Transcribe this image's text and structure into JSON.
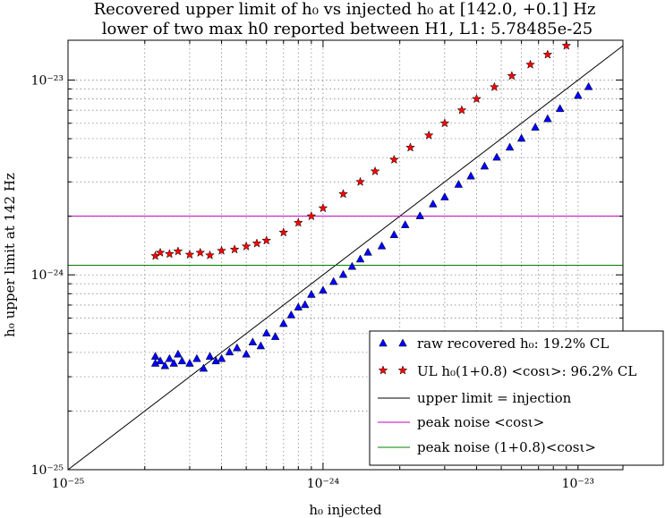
{
  "chart_data": {
    "type": "scatter",
    "title_line1": "Recovered upper limit of h₀ vs injected h₀ at [142.0, +0.1]  Hz",
    "title_line2": "lower of two max h0 reported between H1, L1: 5.78485e-25",
    "xlabel": "h₀ injected",
    "ylabel": "h₀ upper limit at 142 Hz",
    "x_scale": "log",
    "y_scale": "log",
    "xlim": [
      1e-25,
      1.5e-23
    ],
    "ylim": [
      1e-25,
      1.6e-23
    ],
    "x_ticks": [
      {
        "value": 1e-25,
        "label": "10⁻²⁵"
      },
      {
        "value": 1e-24,
        "label": "10⁻²⁴"
      },
      {
        "value": 1e-23,
        "label": "10⁻²³"
      }
    ],
    "y_ticks": [
      {
        "value": 1e-25,
        "label": "10⁻²⁵"
      },
      {
        "value": 1e-24,
        "label": "10⁻²⁴"
      },
      {
        "value": 1e-23,
        "label": "10⁻²³"
      }
    ],
    "grid": true,
    "legend_position": "lower-right",
    "series": [
      {
        "name": "raw recovered h₀: 19.2% CL",
        "marker": "triangle",
        "color": "#0000ff",
        "trend": "points lie around 0.83× injected for injected > 4e-25; plateau near 3.6e-25 below",
        "points": [
          [
            2.2e-25,
            3.5e-25
          ],
          [
            2.2e-25,
            3.8e-25
          ],
          [
            2.3e-25,
            3.6e-25
          ],
          [
            2.4e-25,
            3.4e-25
          ],
          [
            2.5e-25,
            3.7e-25
          ],
          [
            2.6e-25,
            3.5e-25
          ],
          [
            2.7e-25,
            3.9e-25
          ],
          [
            2.8e-25,
            3.6e-25
          ],
          [
            3e-25,
            3.5e-25
          ],
          [
            3.2e-25,
            3.7e-25
          ],
          [
            3.4e-25,
            3.3e-25
          ],
          [
            3.6e-25,
            3.8e-25
          ],
          [
            3.8e-25,
            3.6e-25
          ],
          [
            4e-25,
            3.7e-25
          ],
          [
            4.3e-25,
            4e-25
          ],
          [
            4.6e-25,
            4.2e-25
          ],
          [
            5e-25,
            3.9e-25
          ],
          [
            5.3e-25,
            4.5e-25
          ],
          [
            5.7e-25,
            4.3e-25
          ],
          [
            6e-25,
            5e-25
          ],
          [
            6.5e-25,
            4.8e-25
          ],
          [
            7e-25,
            5.6e-25
          ],
          [
            7.5e-25,
            6.2e-25
          ],
          [
            8e-25,
            6.8e-25
          ],
          [
            8.5e-25,
            7e-25
          ],
          [
            9e-25,
            7.9e-25
          ],
          [
            1e-24,
            8.3e-25
          ],
          [
            1.1e-24,
            9.2e-25
          ],
          [
            1.2e-24,
            1e-24
          ],
          [
            1.3e-24,
            1.1e-24
          ],
          [
            1.4e-24,
            1.2e-24
          ],
          [
            1.5e-24,
            1.3e-24
          ],
          [
            1.7e-24,
            1.4e-24
          ],
          [
            1.9e-24,
            1.6e-24
          ],
          [
            2.1e-24,
            1.8e-24
          ],
          [
            2.4e-24,
            2e-24
          ],
          [
            2.7e-24,
            2.3e-24
          ],
          [
            3e-24,
            2.5e-24
          ],
          [
            3.4e-24,
            2.9e-24
          ],
          [
            3.8e-24,
            3.2e-24
          ],
          [
            4.3e-24,
            3.6e-24
          ],
          [
            4.8e-24,
            4e-24
          ],
          [
            5.4e-24,
            4.5e-24
          ],
          [
            6e-24,
            5e-24
          ],
          [
            6.8e-24,
            5.7e-24
          ],
          [
            7.6e-24,
            6.3e-24
          ],
          [
            8.5e-24,
            7.1e-24
          ],
          [
            1e-23,
            8.3e-24
          ],
          [
            1.1e-23,
            9.2e-24
          ]
        ]
      },
      {
        "name": "UL h₀(1+0.8) <cosι>: 96.2% CL",
        "marker": "star",
        "color": "#ff0000",
        "trend": "plateau near 1.3e-24 below injected 7e-25; rises above the identity line toward 1.6e-23",
        "points": [
          [
            2.2e-25,
            1.25e-24
          ],
          [
            2.3e-25,
            1.3e-24
          ],
          [
            2.5e-25,
            1.28e-24
          ],
          [
            2.7e-25,
            1.32e-24
          ],
          [
            3e-25,
            1.27e-24
          ],
          [
            3.3e-25,
            1.3e-24
          ],
          [
            3.6e-25,
            1.26e-24
          ],
          [
            4e-25,
            1.33e-24
          ],
          [
            4.5e-25,
            1.35e-24
          ],
          [
            5e-25,
            1.4e-24
          ],
          [
            5.5e-25,
            1.45e-24
          ],
          [
            6e-25,
            1.5e-24
          ],
          [
            7e-25,
            1.65e-24
          ],
          [
            8e-25,
            1.85e-24
          ],
          [
            9e-25,
            2e-24
          ],
          [
            1e-24,
            2.2e-24
          ],
          [
            1.2e-24,
            2.6e-24
          ],
          [
            1.4e-24,
            3e-24
          ],
          [
            1.6e-24,
            3.4e-24
          ],
          [
            1.9e-24,
            3.9e-24
          ],
          [
            2.2e-24,
            4.5e-24
          ],
          [
            2.6e-24,
            5.2e-24
          ],
          [
            3e-24,
            6e-24
          ],
          [
            3.5e-24,
            7e-24
          ],
          [
            4e-24,
            8e-24
          ],
          [
            4.7e-24,
            9.2e-24
          ],
          [
            5.5e-24,
            1.05e-23
          ],
          [
            6.5e-24,
            1.2e-23
          ],
          [
            7.6e-24,
            1.35e-23
          ],
          [
            9e-24,
            1.5e-23
          ]
        ]
      }
    ],
    "lines": [
      {
        "name": "upper limit = injection",
        "color": "#000000",
        "type": "diagonal"
      },
      {
        "name": "peak noise <cosι>",
        "color": "#bf00bf",
        "type": "horizontal",
        "y": 2e-24
      },
      {
        "name": "peak noise (1+0.8)<cosι>",
        "color": "#008000",
        "type": "horizontal",
        "y": 1.12e-24
      }
    ]
  }
}
